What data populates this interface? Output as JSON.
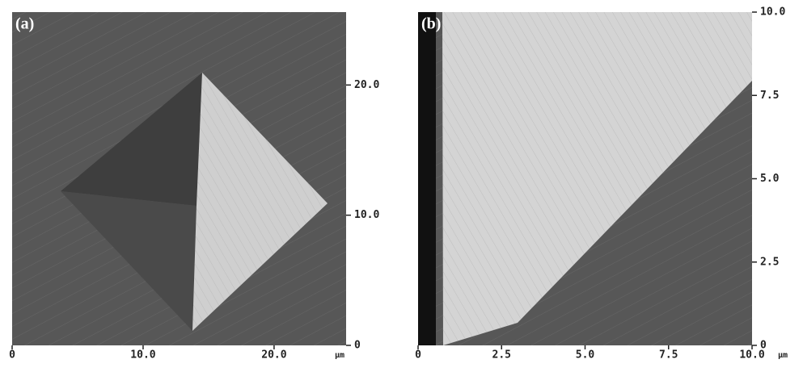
{
  "panels": [
    {
      "label": "(a)",
      "x_unit": "μm",
      "xlim": [
        0,
        25.5
      ],
      "ylim": [
        0,
        25.6
      ],
      "xticks": [
        0,
        {
          "value": 10,
          "label": "10.0"
        },
        {
          "value": 20,
          "label": "20.0"
        }
      ],
      "yticks": [
        0,
        {
          "value": 10,
          "label": "10.0"
        },
        {
          "value": 20,
          "label": "20.0"
        }
      ]
    },
    {
      "label": "(b)",
      "x_unit": "μm",
      "xlim": [
        0,
        10
      ],
      "ylim": [
        0,
        10
      ],
      "xticks": [
        0,
        2.5,
        {
          "value": 5,
          "label": "5.0"
        },
        7.5,
        {
          "value": 10,
          "label": "10.0"
        }
      ],
      "yticks": [
        0,
        2.5,
        {
          "value": 5,
          "label": "5.0"
        },
        7.5,
        {
          "value": 10,
          "label": "10.0"
        }
      ]
    }
  ]
}
